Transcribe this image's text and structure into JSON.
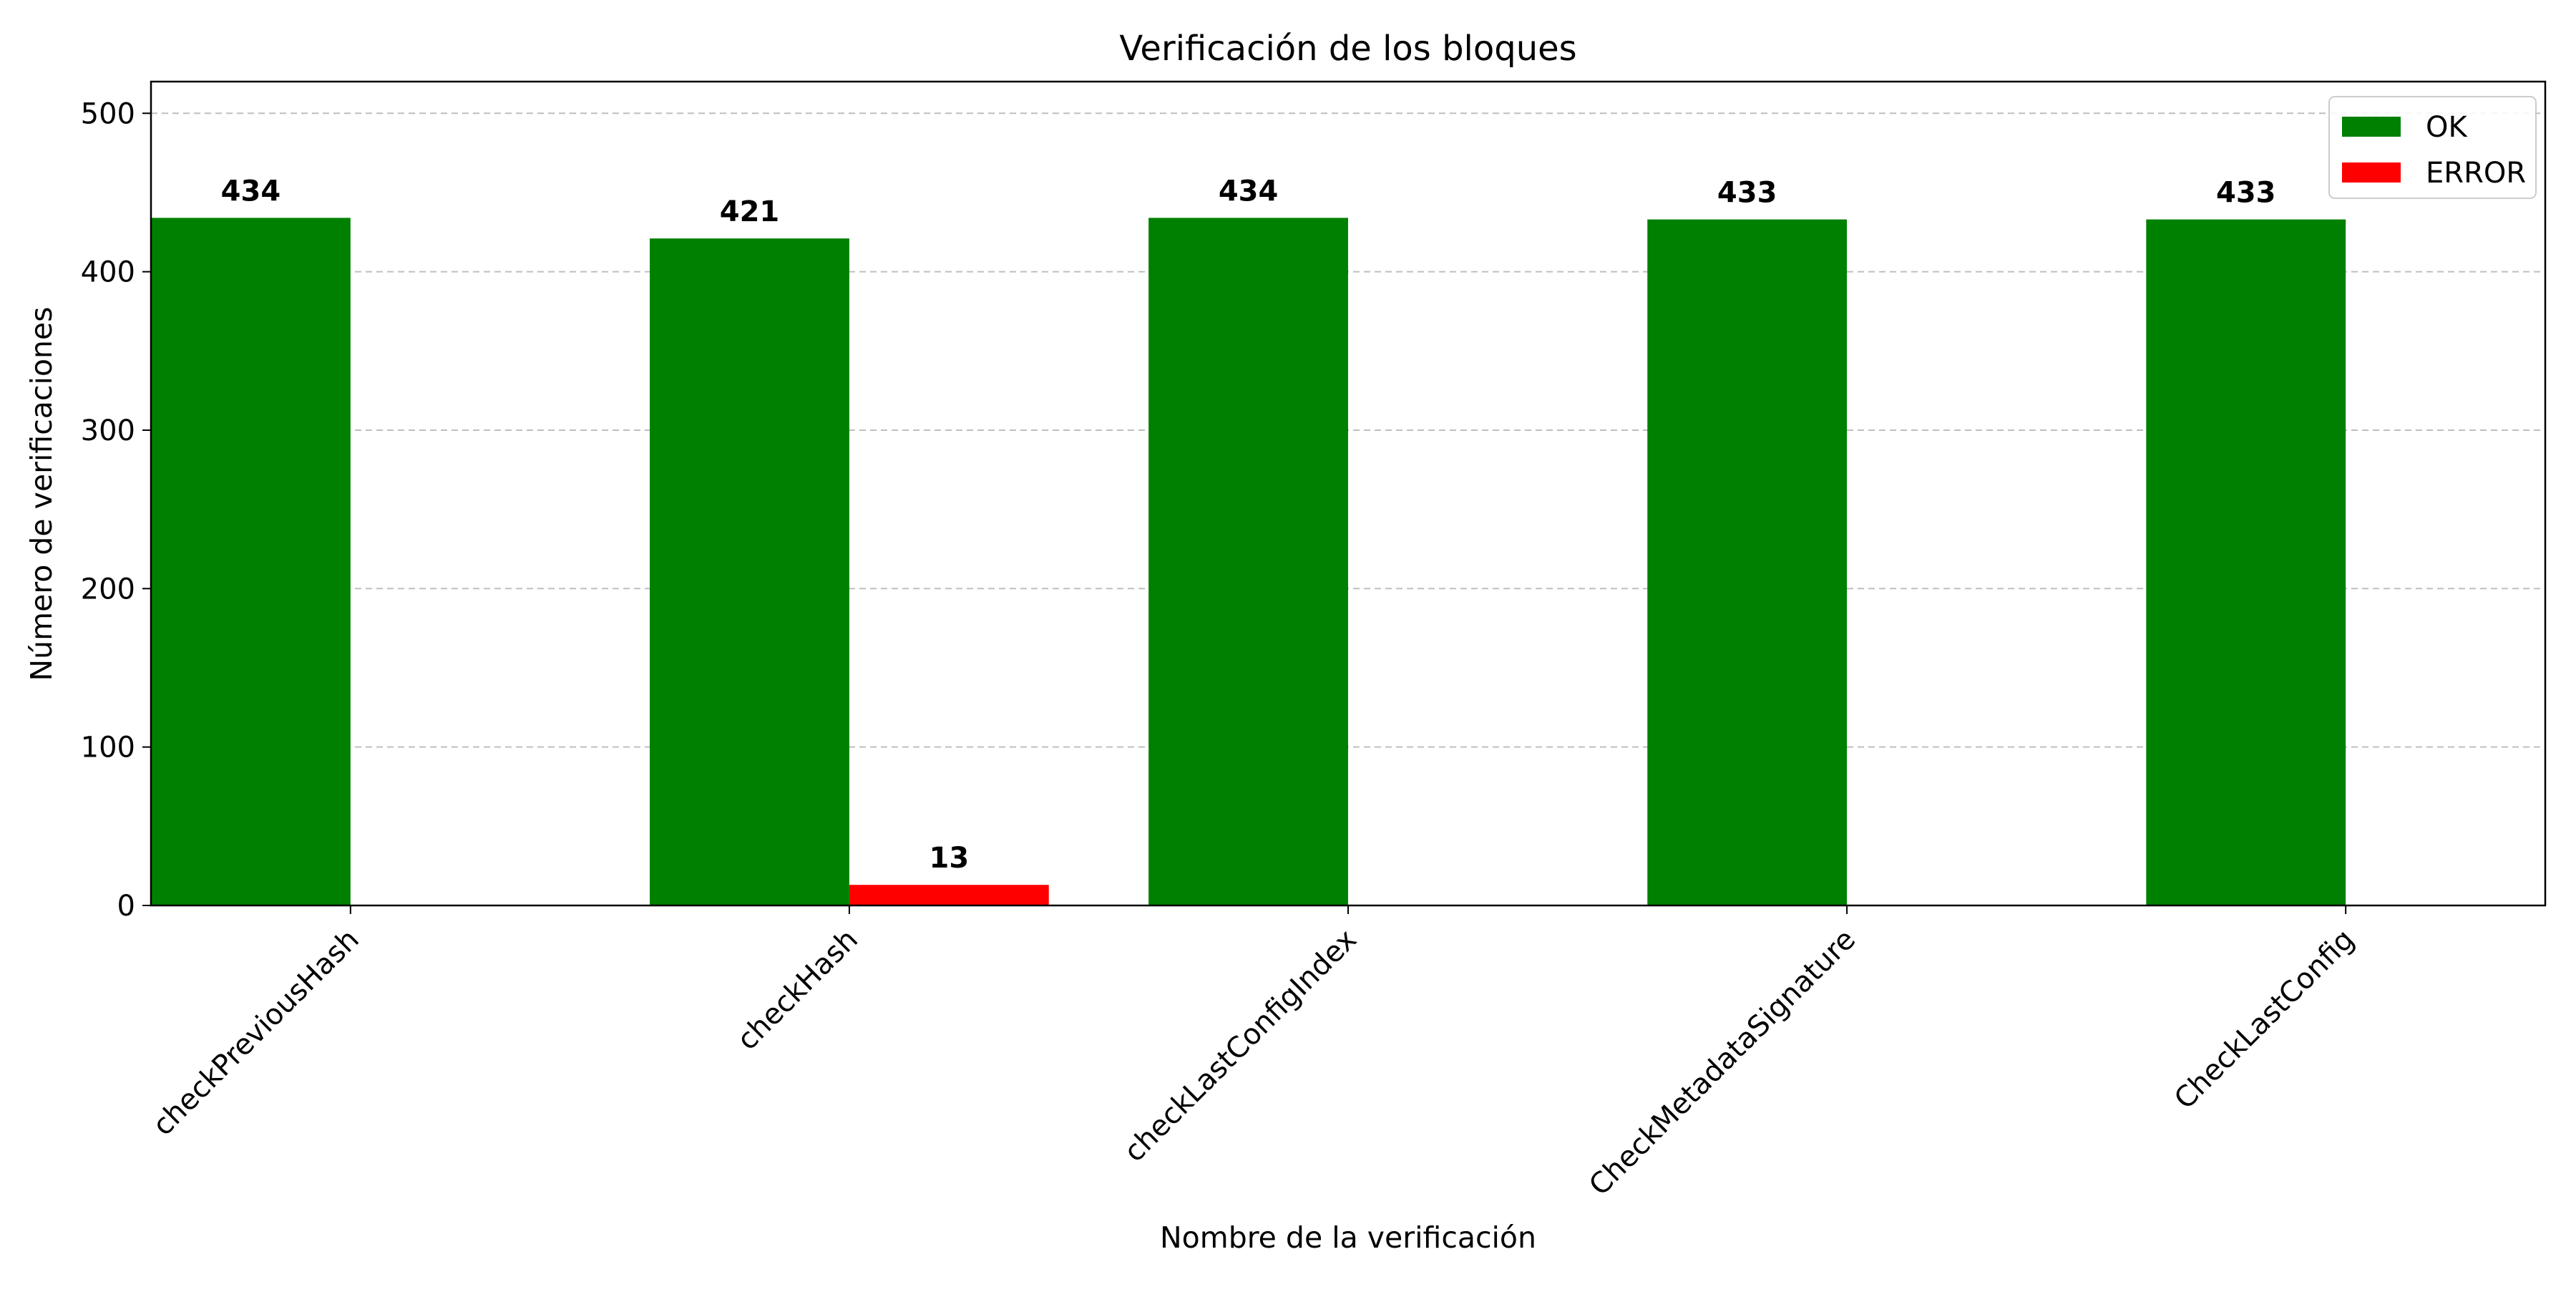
{
  "chart_data": {
    "type": "bar",
    "title": "Verificación de los bloques",
    "xlabel": "Nombre de la verificación",
    "ylabel": "Número de verificaciones",
    "categories": [
      "checkPreviousHash",
      "checkHash",
      "checkLastConfigIndex",
      "CheckMetadataSignature",
      "CheckLastConfig"
    ],
    "series": [
      {
        "name": "OK",
        "color": "#008000",
        "values": [
          434,
          421,
          434,
          433,
          433
        ]
      },
      {
        "name": "ERROR",
        "color": "#ff0000",
        "values": [
          0,
          13,
          0,
          0,
          0
        ]
      }
    ],
    "ylim": [
      0,
      520
    ],
    "yticks": [
      0,
      100,
      200,
      300,
      400,
      500
    ],
    "grid": "y-dashed",
    "legend_position": "top-right",
    "data_labels_shown_for_nonzero": true
  }
}
